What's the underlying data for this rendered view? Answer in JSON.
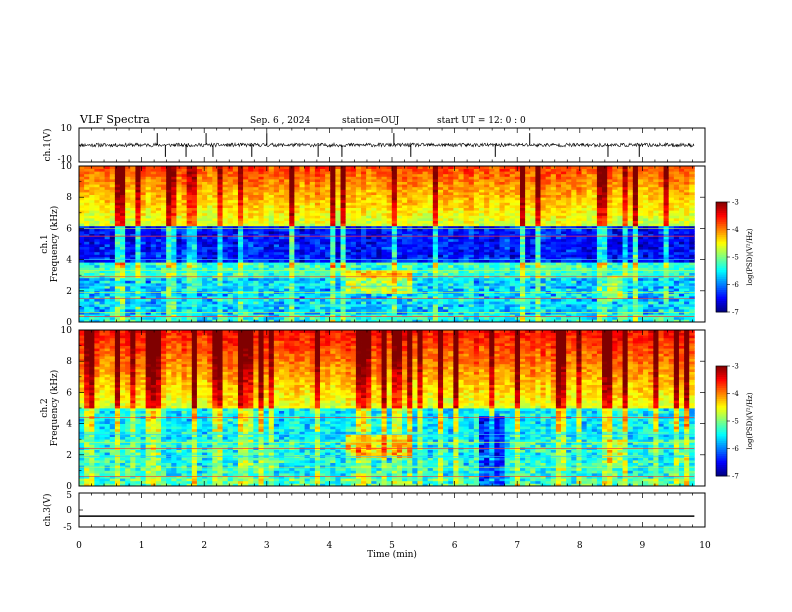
{
  "header": {
    "title": "VLF Spectra",
    "date": "Sep. 6 , 2024",
    "station": "station=OUJ",
    "start": "start UT = 12: 0 : 0"
  },
  "chart_data": [
    {
      "type": "line",
      "name": "ch1-waveform",
      "ylabel": "ch.1(V)",
      "ylim": [
        -10,
        10
      ],
      "yticks": [
        "10",
        "-10"
      ],
      "baseline": 0,
      "spikes_x": [
        1.25,
        1.38,
        1.71,
        2.03,
        2.14,
        2.76,
        3.0,
        3.82,
        4.2,
        5.03,
        5.3,
        6.65,
        7.2,
        8.45,
        8.95
      ]
    },
    {
      "type": "heatmap",
      "name": "ch1-spectrogram",
      "ylabel_line1": "ch.1",
      "ylabel_line2": "Frequency (kHz)",
      "ylim": [
        0,
        10
      ],
      "yticks": [
        "0",
        "2",
        "4",
        "6",
        "8",
        "10"
      ],
      "colorbar": {
        "label": "log(PSD)(V²/Hz)",
        "range": [
          -7,
          -3
        ],
        "ticks": [
          "-3",
          "-4",
          "-5",
          "-6",
          "-7"
        ]
      }
    },
    {
      "type": "heatmap",
      "name": "ch2-spectrogram",
      "ylabel_line1": "ch.2",
      "ylabel_line2": "Frequency (kHz)",
      "ylim": [
        0,
        10
      ],
      "yticks": [
        "0",
        "2",
        "4",
        "6",
        "8",
        "10"
      ],
      "colorbar": {
        "label": "log(PSD)(V²/Hz)",
        "range": [
          -7,
          -3
        ],
        "ticks": [
          "-3",
          "-4",
          "-5",
          "-6",
          "-7"
        ]
      }
    },
    {
      "type": "line",
      "name": "ch3-waveform",
      "ylabel": "ch.3(V)",
      "ylim": [
        -5,
        5
      ],
      "yticks": [
        "5",
        "0",
        "-5"
      ],
      "level": -1.8
    }
  ],
  "xaxis": {
    "label": "Time (min)",
    "range": [
      0,
      10
    ],
    "ticks": [
      "0",
      "1",
      "2",
      "3",
      "4",
      "5",
      "6",
      "7",
      "8",
      "9",
      "10"
    ],
    "data_end": 9.83
  }
}
